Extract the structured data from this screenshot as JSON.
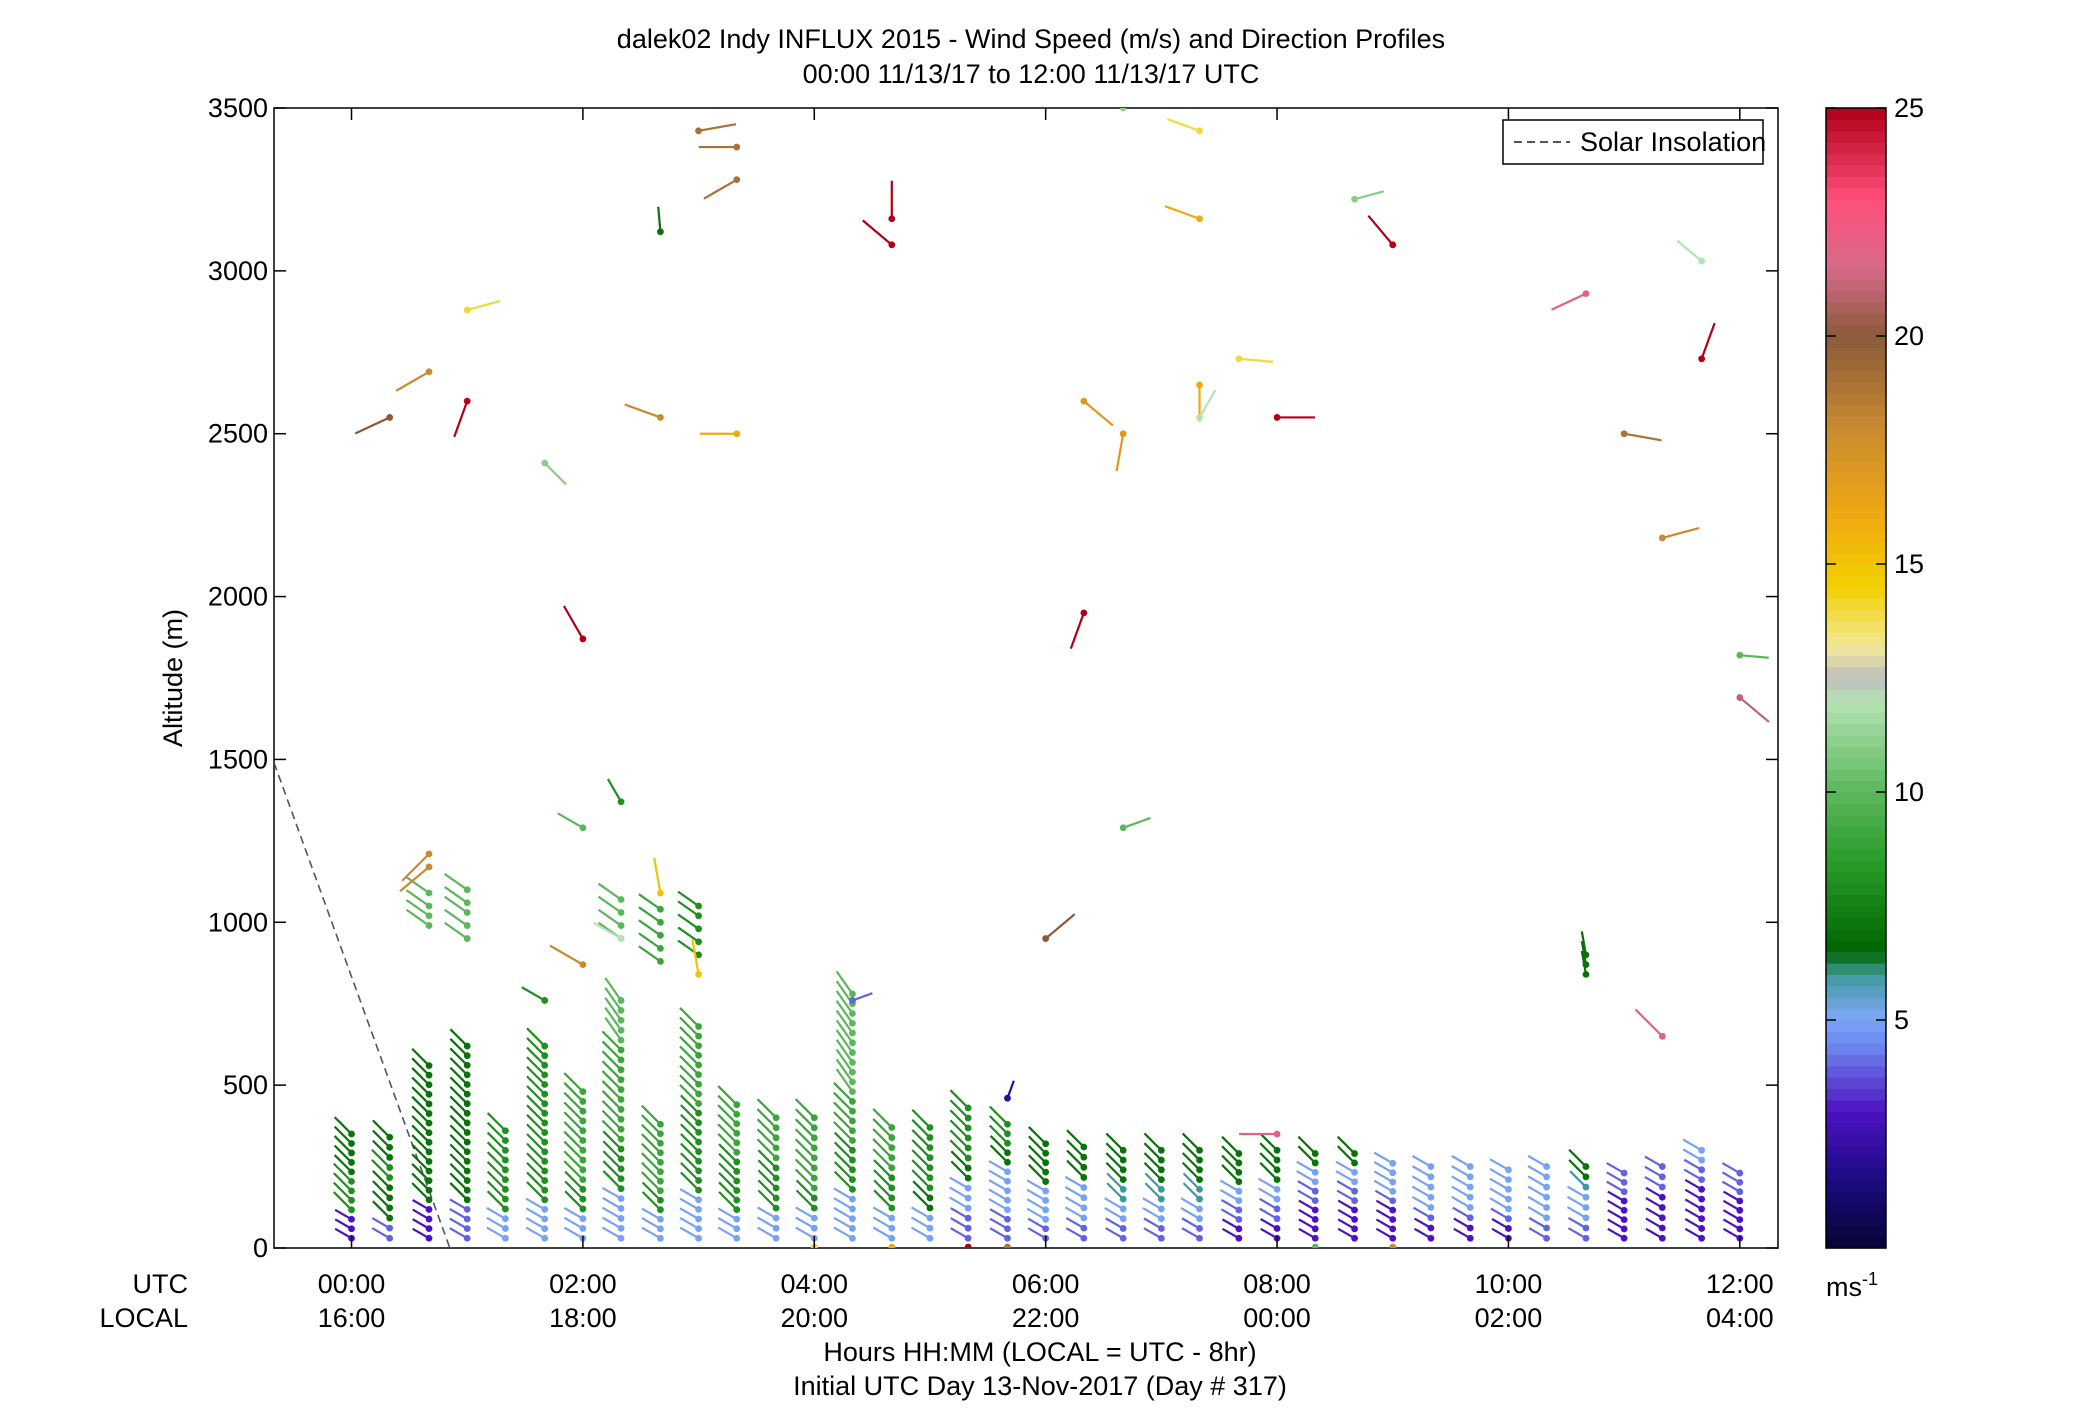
{
  "title_line1": "dalek02 Indy INFLUX 2015 - Wind Speed (m/s) and Direction Profiles",
  "title_line2": "00:00 11/13/17 to 12:00 11/13/17  UTC",
  "xlabel_line1": "Hours HH:MM  (LOCAL = UTC - 8hr)",
  "xlabel_line2": "Initial UTC Day 13-Nov-2017 (Day # 317)",
  "row_label_utc": "UTC",
  "row_label_local": "LOCAL",
  "ylabel": "Altitude (m)",
  "colorbar_unit": "ms",
  "colorbar_unit_sup": "-1",
  "colors": {
    "axes": "#000000",
    "solar_line": "#555555",
    "background": "#ffffff"
  },
  "chart_data": {
    "type": "scatter",
    "subtype": "wind-barb profiles",
    "xlim_hours_utc": [
      -0.67,
      12.33
    ],
    "ylim": [
      0,
      3500
    ],
    "yticks": [
      0,
      500,
      1000,
      1500,
      2000,
      2500,
      3000,
      3500
    ],
    "ytick_labels": [
      "0",
      "500",
      "1000",
      "1500",
      "2000",
      "2500",
      "3000",
      "3500"
    ],
    "xticks_hours": [
      0,
      2,
      4,
      6,
      8,
      10,
      12
    ],
    "xtick_labels_utc": [
      "00:00",
      "02:00",
      "04:00",
      "06:00",
      "08:00",
      "10:00",
      "12:00"
    ],
    "xtick_labels_local": [
      "16:00",
      "18:00",
      "20:00",
      "22:00",
      "00:00",
      "02:00",
      "04:00"
    ],
    "legend": {
      "entries": [
        "Solar Insolation"
      ],
      "placement": "top-right"
    },
    "solar_insolation": {
      "x_hours": [
        -0.67,
        0.85
      ],
      "y": [
        1490,
        0
      ],
      "style": "dashed"
    },
    "colorbar": {
      "range": [
        0,
        25
      ],
      "ticks": [
        5,
        10,
        15,
        20,
        25
      ],
      "tick_labels": [
        "5",
        "10",
        "15",
        "20",
        "25"
      ],
      "stops": [
        {
          "v": 0,
          "c": "#050533"
        },
        {
          "v": 1.5,
          "c": "#1c0a80"
        },
        {
          "v": 3,
          "c": "#4c12c2"
        },
        {
          "v": 4.5,
          "c": "#6f8cf0"
        },
        {
          "v": 5.1,
          "c": "#7aa6f4"
        },
        {
          "v": 6,
          "c": "#3e9a9a"
        },
        {
          "v": 6.5,
          "c": "#006400"
        },
        {
          "v": 8.5,
          "c": "#2a9c2a"
        },
        {
          "v": 10,
          "c": "#5cb75c"
        },
        {
          "v": 12,
          "c": "#b3e3b3"
        },
        {
          "v": 12.5,
          "c": "#bdbdbd"
        },
        {
          "v": 13.2,
          "c": "#f2e89a"
        },
        {
          "v": 14.5,
          "c": "#f2d000"
        },
        {
          "v": 16,
          "c": "#f0aa10"
        },
        {
          "v": 18,
          "c": "#c98a30"
        },
        {
          "v": 20,
          "c": "#8a5a3a"
        },
        {
          "v": 21.5,
          "c": "#d76a8a"
        },
        {
          "v": 23,
          "c": "#ff4f7a"
        },
        {
          "v": 25,
          "c": "#b00018"
        }
      ]
    },
    "low_level_profiles": [
      {
        "t": 0.0,
        "top": 350,
        "speeds": [
          3,
          8,
          8,
          7,
          7
        ]
      },
      {
        "t": 0.33,
        "top": 340,
        "speeds": [
          4,
          7,
          7,
          8,
          7
        ]
      },
      {
        "t": 0.67,
        "top": 560,
        "speeds": [
          3,
          7,
          7,
          7,
          7
        ]
      },
      {
        "t": 1.0,
        "top": 620,
        "speeds": [
          4,
          7,
          7,
          7,
          7
        ]
      },
      {
        "t": 1.33,
        "top": 360,
        "speeds": [
          5,
          8,
          8,
          8,
          8
        ]
      },
      {
        "t": 1.67,
        "top": 620,
        "speeds": [
          5,
          8,
          8,
          8,
          8
        ]
      },
      {
        "t": 2.0,
        "top": 480,
        "speeds": [
          5,
          8,
          9,
          9,
          9
        ]
      },
      {
        "t": 2.33,
        "top": 760,
        "speeds": [
          5,
          8,
          9,
          9,
          10
        ]
      },
      {
        "t": 2.67,
        "top": 380,
        "speeds": [
          5,
          8,
          9,
          9,
          9
        ]
      },
      {
        "t": 3.0,
        "top": 680,
        "speeds": [
          5,
          8,
          8,
          9,
          9
        ]
      },
      {
        "t": 3.33,
        "top": 440,
        "speeds": [
          5,
          8,
          8,
          9,
          9
        ]
      },
      {
        "t": 3.67,
        "top": 400,
        "speeds": [
          5,
          8,
          8,
          9,
          9
        ]
      },
      {
        "t": 4.0,
        "top": 400,
        "speeds": [
          5,
          8,
          9,
          9,
          9
        ]
      },
      {
        "t": 4.33,
        "top": 780,
        "speeds": [
          5,
          8,
          9,
          10,
          10
        ]
      },
      {
        "t": 4.67,
        "top": 370,
        "speeds": [
          5,
          8,
          8,
          9,
          9
        ]
      },
      {
        "t": 5.0,
        "top": 370,
        "speeds": [
          5,
          7,
          8,
          8,
          8
        ]
      },
      {
        "t": 5.33,
        "top": 430,
        "speeds": [
          4,
          5,
          7,
          8,
          8
        ]
      },
      {
        "t": 5.67,
        "top": 380,
        "speeds": [
          4,
          5,
          5,
          7,
          8
        ]
      },
      {
        "t": 6.0,
        "top": 320,
        "speeds": [
          4,
          5,
          5,
          7,
          7
        ]
      },
      {
        "t": 6.33,
        "top": 310,
        "speeds": [
          4,
          5,
          5,
          7,
          7
        ]
      },
      {
        "t": 6.67,
        "top": 300,
        "speeds": [
          4,
          5,
          6,
          7,
          7
        ]
      },
      {
        "t": 7.0,
        "top": 300,
        "speeds": [
          4,
          5,
          6,
          7,
          7
        ]
      },
      {
        "t": 7.33,
        "top": 300,
        "speeds": [
          4,
          5,
          6,
          7,
          7
        ]
      },
      {
        "t": 7.67,
        "top": 290,
        "speeds": [
          3,
          4,
          5,
          7,
          7
        ]
      },
      {
        "t": 8.0,
        "top": 300,
        "speeds": [
          3,
          4,
          5,
          7,
          7
        ]
      },
      {
        "t": 8.33,
        "top": 290,
        "speeds": [
          3,
          3,
          4,
          5,
          7
        ]
      },
      {
        "t": 8.67,
        "top": 290,
        "speeds": [
          3,
          3,
          4,
          5,
          7
        ]
      },
      {
        "t": 9.0,
        "top": 260,
        "speeds": [
          3,
          3,
          4,
          5,
          5
        ]
      },
      {
        "t": 9.33,
        "top": 250,
        "speeds": [
          3,
          4,
          5,
          5,
          5
        ]
      },
      {
        "t": 9.67,
        "top": 250,
        "speeds": [
          3,
          4,
          5,
          5,
          5
        ]
      },
      {
        "t": 10.0,
        "top": 240,
        "speeds": [
          3,
          4,
          5,
          5,
          5
        ]
      },
      {
        "t": 10.33,
        "top": 250,
        "speeds": [
          4,
          5,
          5,
          5,
          5
        ]
      },
      {
        "t": 10.67,
        "top": 250,
        "speeds": [
          4,
          5,
          5,
          6,
          7
        ]
      },
      {
        "t": 11.0,
        "top": 230,
        "speeds": [
          3,
          3,
          3,
          4,
          4
        ]
      },
      {
        "t": 11.33,
        "top": 250,
        "speeds": [
          3,
          3,
          3,
          4,
          4
        ]
      },
      {
        "t": 11.67,
        "top": 300,
        "speeds": [
          3,
          3,
          3,
          4,
          5
        ]
      },
      {
        "t": 12.0,
        "top": 230,
        "speeds": [
          3,
          3,
          3,
          4,
          4
        ]
      }
    ],
    "mid_clusters": [
      {
        "t": 0.67,
        "alts": [
          990,
          1020,
          1050,
          1090
        ],
        "speed": 10
      },
      {
        "t": 1.0,
        "alts": [
          950,
          990,
          1030,
          1060,
          1100
        ],
        "speed": 10
      },
      {
        "t": 2.33,
        "alts": [
          950,
          990,
          1030,
          1070
        ],
        "speed": 10
      },
      {
        "t": 2.67,
        "alts": [
          880,
          920,
          960,
          1000,
          1040
        ],
        "speed": 9
      },
      {
        "t": 3.0,
        "alts": [
          900,
          940,
          980,
          1020,
          1050
        ],
        "speed": 8
      },
      {
        "t": 10.67,
        "alts": [
          840,
          870,
          900
        ],
        "speed": 7
      }
    ],
    "isolated_barbs": [
      {
        "t": 0.67,
        "alt": 1210,
        "speed": 18,
        "dir": 225
      },
      {
        "t": 0.67,
        "alt": 1170,
        "speed": 18,
        "dir": 230
      },
      {
        "t": 1.67,
        "alt": 760,
        "speed": 8,
        "dir": 300
      },
      {
        "t": 2.0,
        "alt": 870,
        "speed": 18,
        "dir": 300
      },
      {
        "t": 2.33,
        "alt": 950,
        "speed": 12,
        "dir": 300
      },
      {
        "t": 2.33,
        "alt": 1370,
        "speed": 8,
        "dir": 330
      },
      {
        "t": 2.67,
        "alt": 1090,
        "speed": 15,
        "dir": 350
      },
      {
        "t": 3.0,
        "alt": 840,
        "speed": 15,
        "dir": 350
      },
      {
        "t": 4.33,
        "alt": 760,
        "speed": 4,
        "dir": 70
      },
      {
        "t": 5.67,
        "alt": 460,
        "speed": 2,
        "dir": 20
      },
      {
        "t": 8.0,
        "alt": 350,
        "speed": 22,
        "dir": 270
      },
      {
        "t": 11.33,
        "alt": 650,
        "speed": 22,
        "dir": 315
      },
      {
        "t": 0.33,
        "alt": 2550,
        "speed": 20,
        "dir": 245
      },
      {
        "t": 0.67,
        "alt": 2690,
        "speed": 18,
        "dir": 240
      },
      {
        "t": 1.0,
        "alt": 2600,
        "speed": 25,
        "dir": 200
      },
      {
        "t": 1.0,
        "alt": 2880,
        "speed": 14,
        "dir": 75
      },
      {
        "t": 1.67,
        "alt": 2410,
        "speed": 11,
        "dir": 135
      },
      {
        "t": 2.0,
        "alt": 1870,
        "speed": 25,
        "dir": 330
      },
      {
        "t": 2.0,
        "alt": 1290,
        "speed": 10,
        "dir": 300
      },
      {
        "t": 2.67,
        "alt": 2550,
        "speed": 18,
        "dir": 290
      },
      {
        "t": 2.67,
        "alt": 3120,
        "speed": 7,
        "dir": 355
      },
      {
        "t": 3.0,
        "alt": 3430,
        "speed": 19,
        "dir": 80
      },
      {
        "t": 3.33,
        "alt": 3380,
        "speed": 19,
        "dir": 270
      },
      {
        "t": 3.33,
        "alt": 3280,
        "speed": 19,
        "dir": 240
      },
      {
        "t": 3.33,
        "alt": 2500,
        "speed": 16,
        "dir": 270
      },
      {
        "t": 4.67,
        "alt": 3160,
        "speed": 25,
        "dir": 0
      },
      {
        "t": 4.67,
        "alt": 3080,
        "speed": 25,
        "dir": 310
      },
      {
        "t": 6.33,
        "alt": 1950,
        "speed": 25,
        "dir": 200
      },
      {
        "t": 6.0,
        "alt": 950,
        "speed": 20,
        "dir": 50
      },
      {
        "t": 6.33,
        "alt": 2600,
        "speed": 17,
        "dir": 130
      },
      {
        "t": 6.67,
        "alt": 2500,
        "speed": 17,
        "dir": 190
      },
      {
        "t": 6.67,
        "alt": 1290,
        "speed": 10,
        "dir": 70
      },
      {
        "t": 6.67,
        "alt": 3500,
        "speed": 11,
        "dir": 330
      },
      {
        "t": 7.33,
        "alt": 3430,
        "speed": 14,
        "dir": 290
      },
      {
        "t": 7.33,
        "alt": 3160,
        "speed": 16,
        "dir": 290
      },
      {
        "t": 7.33,
        "alt": 2650,
        "speed": 16,
        "dir": 180
      },
      {
        "t": 7.33,
        "alt": 2550,
        "speed": 12,
        "dir": 30
      },
      {
        "t": 7.67,
        "alt": 2730,
        "speed": 14,
        "dir": 95
      },
      {
        "t": 8.0,
        "alt": 2550,
        "speed": 25,
        "dir": 90
      },
      {
        "t": 8.67,
        "alt": 3220,
        "speed": 11,
        "dir": 75
      },
      {
        "t": 9.0,
        "alt": 3080,
        "speed": 25,
        "dir": 320
      },
      {
        "t": 10.67,
        "alt": 2930,
        "speed": 22,
        "dir": 245
      },
      {
        "t": 11.0,
        "alt": 2500,
        "speed": 19,
        "dir": 100
      },
      {
        "t": 11.33,
        "alt": 2180,
        "speed": 18,
        "dir": 75
      },
      {
        "t": 11.67,
        "alt": 3030,
        "speed": 12,
        "dir": 310
      },
      {
        "t": 11.67,
        "alt": 2730,
        "speed": 25,
        "dir": 20
      },
      {
        "t": 12.0,
        "alt": 1820,
        "speed": 10,
        "dir": 95
      },
      {
        "t": 12.0,
        "alt": 1690,
        "speed": 21,
        "dir": 130
      }
    ],
    "surface_dots": [
      {
        "t": 4.0,
        "speed": 14
      },
      {
        "t": 4.67,
        "speed": 16
      },
      {
        "t": 5.33,
        "speed": 25
      },
      {
        "t": 5.67,
        "speed": 19
      },
      {
        "t": 8.33,
        "speed": 10
      },
      {
        "t": 9.0,
        "speed": 18
      }
    ]
  }
}
